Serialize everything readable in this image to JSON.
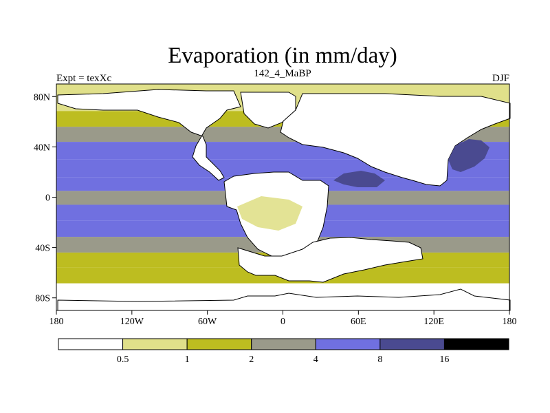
{
  "chart_data": {
    "type": "heatmap",
    "title": "Evaporation (in mm/day)",
    "subtitle_left": "Expt = texXc",
    "subtitle_center": "142_4_MaBP",
    "subtitle_right": "DJF",
    "units": "mm/day",
    "xlim": [
      -180,
      180
    ],
    "ylim": [
      -90,
      90
    ],
    "x_ticks": [
      {
        "value": -180,
        "label": "180"
      },
      {
        "value": -120,
        "label": "120W"
      },
      {
        "value": -60,
        "label": "60W"
      },
      {
        "value": 0,
        "label": "0"
      },
      {
        "value": 60,
        "label": "60E"
      },
      {
        "value": 120,
        "label": "120E"
      },
      {
        "value": 180,
        "label": "180"
      }
    ],
    "y_ticks": [
      {
        "value": 80,
        "label": "80N"
      },
      {
        "value": 40,
        "label": "40N"
      },
      {
        "value": 0,
        "label": "0"
      },
      {
        "value": -40,
        "label": "40S"
      },
      {
        "value": -80,
        "label": "80S"
      }
    ],
    "colorbar": {
      "levels": [
        "0.5",
        "1",
        "2",
        "4",
        "8",
        "16"
      ],
      "colors": [
        "#ffffff",
        "#e0e08a",
        "#bdbd20",
        "#9a9a8a",
        "#7070e0",
        "#4a4a90",
        "#000000"
      ]
    },
    "zonal_profile": [
      {
        "lat": 75,
        "value": 0.7
      },
      {
        "lat": 62,
        "value": 1.6
      },
      {
        "lat": 50,
        "value": 3.0
      },
      {
        "lat": 38,
        "value": 5.5
      },
      {
        "lat": 22,
        "value": 6.5
      },
      {
        "lat": 10,
        "value": 4.5
      },
      {
        "lat": 0,
        "value": 3.5
      },
      {
        "lat": -12,
        "value": 4.0
      },
      {
        "lat": -25,
        "value": 6.0
      },
      {
        "lat": -38,
        "value": 3.0
      },
      {
        "lat": -50,
        "value": 1.5
      },
      {
        "lat": -62,
        "value": 1.0
      },
      {
        "lat": -75,
        "value": 0.4
      }
    ]
  }
}
